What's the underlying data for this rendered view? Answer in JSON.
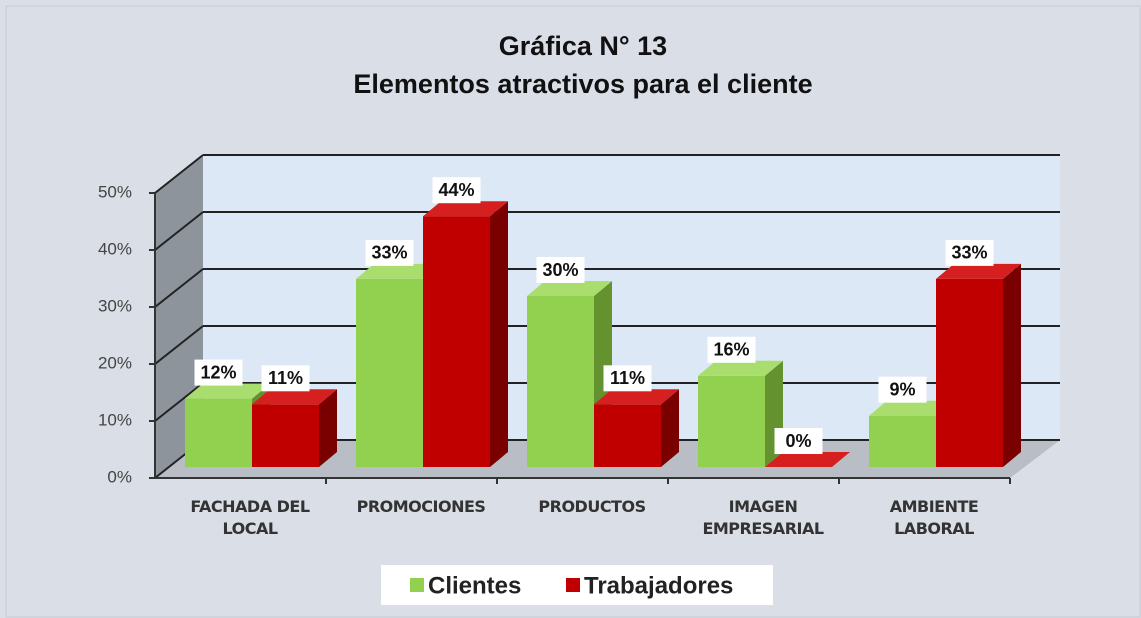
{
  "chart_data": {
    "type": "bar3d",
    "title": "Gráfica N° 13",
    "subtitle": "Elementos atractivos para el cliente",
    "categories": [
      "FACHADA DEL LOCAL",
      "PROMOCIONES",
      "PRODUCTOS",
      "IMAGEN EMPRESARIAL",
      "AMBIENTE LABORAL"
    ],
    "series": [
      {
        "name": "Clientes",
        "color": "#92d050",
        "values": [
          12,
          33,
          30,
          16,
          9
        ],
        "value_labels": [
          "12%",
          "33%",
          "30%",
          "16%",
          "9%"
        ]
      },
      {
        "name": "Trabajadores",
        "color": "#c00000",
        "values": [
          11,
          44,
          11,
          0,
          33
        ],
        "value_labels": [
          "11%",
          "44%",
          "11%",
          "0%",
          "33%"
        ]
      }
    ],
    "ylim": [
      0,
      50
    ],
    "yticks": [
      {
        "value": 0,
        "label": "0%"
      },
      {
        "value": 10,
        "label": "10%"
      },
      {
        "value": 20,
        "label": "20%"
      },
      {
        "value": 30,
        "label": "30%"
      },
      {
        "value": 40,
        "label": "40%"
      },
      {
        "value": 50,
        "label": "50%"
      }
    ],
    "grid": true,
    "legend": "bottom"
  }
}
